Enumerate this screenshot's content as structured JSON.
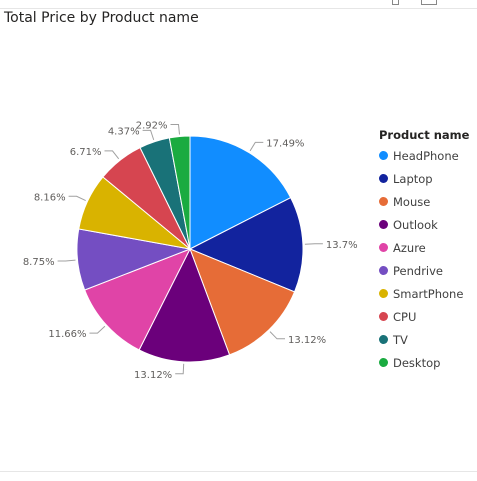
{
  "header": {
    "title": "Total Price by Product name"
  },
  "chart_data": {
    "type": "pie",
    "title": "Total Price by Product name",
    "legend_title": "Product name",
    "legend_position": "right",
    "slices": [
      {
        "label": "HeadPhone",
        "value": 17.49,
        "display": "17.49%",
        "color": "#118DFF"
      },
      {
        "label": "Laptop",
        "value": 13.7,
        "display": "13.7%",
        "color": "#12239E"
      },
      {
        "label": "Mouse",
        "value": 13.12,
        "display": "13.12%",
        "color": "#E66C37"
      },
      {
        "label": "Outlook",
        "value": 13.12,
        "display": "13.12%",
        "color": "#6B007B"
      },
      {
        "label": "Azure",
        "value": 11.66,
        "display": "11.66%",
        "color": "#E044A7"
      },
      {
        "label": "Pendrive",
        "value": 8.75,
        "display": "8.75%",
        "color": "#744EC2"
      },
      {
        "label": "SmartPhone",
        "value": 8.16,
        "display": "8.16%",
        "color": "#D9B300"
      },
      {
        "label": "CPU",
        "value": 6.71,
        "display": "6.71%",
        "color": "#D64550"
      },
      {
        "label": "TV",
        "value": 4.37,
        "display": "4.37%",
        "color": "#197278"
      },
      {
        "label": "Desktop",
        "value": 2.92,
        "display": "2.92%",
        "color": "#1AAB40"
      }
    ]
  }
}
